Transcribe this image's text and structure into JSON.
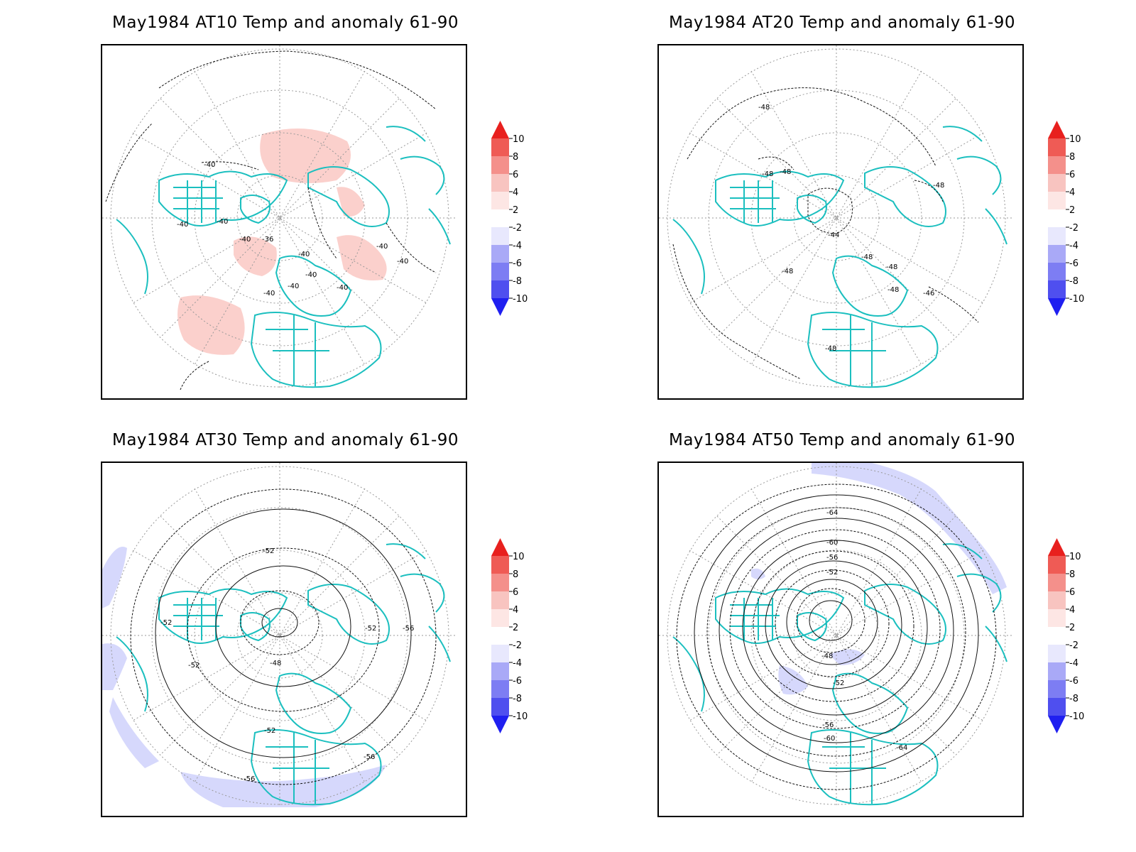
{
  "panels": [
    {
      "title": "May1984 AT10 Temp and anomaly 61-90",
      "contour_labels": [
        "-40",
        "-40",
        "-40",
        "-40",
        "-36",
        "-40",
        "-40",
        "-40",
        "-40",
        "-40",
        "-40",
        "-40"
      ]
    },
    {
      "title": "May1984 AT20 Temp and anomaly 61-90",
      "contour_labels": [
        "-48",
        "-48",
        "-48",
        "-48",
        "-44",
        "-48",
        "-48",
        "-48",
        "-48",
        "-46",
        "-48"
      ]
    },
    {
      "title": "May1984 AT30 Temp and anomaly 61-90",
      "contour_labels": [
        "-52",
        "-52",
        "-52",
        "-48",
        "-52",
        "-56",
        "-52",
        "-56",
        "-56"
      ]
    },
    {
      "title": "May1984 AT50 Temp and anomaly 61-90",
      "contour_labels": [
        "-64",
        "-60",
        "-56",
        "-52",
        "-48",
        "-52",
        "-56",
        "-60",
        "-64"
      ]
    }
  ],
  "colorbar": {
    "labels": [
      "10",
      "8",
      "6",
      "4",
      "2",
      "-2",
      "-4",
      "-6",
      "-8",
      "-10"
    ],
    "colors": [
      "#e8201e",
      "#ef5b55",
      "#f4908b",
      "#f8c4c0",
      "#ffffff",
      "#d4d4fb",
      "#a9a9f7",
      "#7d7df3",
      "#4f4fef",
      "#1f1ff0"
    ]
  },
  "colors": {
    "coast": "#1bbfbf",
    "warm_anomaly": "#fbd0cc",
    "cool_anomaly": "#d6d8fc",
    "contour": "#111111"
  }
}
